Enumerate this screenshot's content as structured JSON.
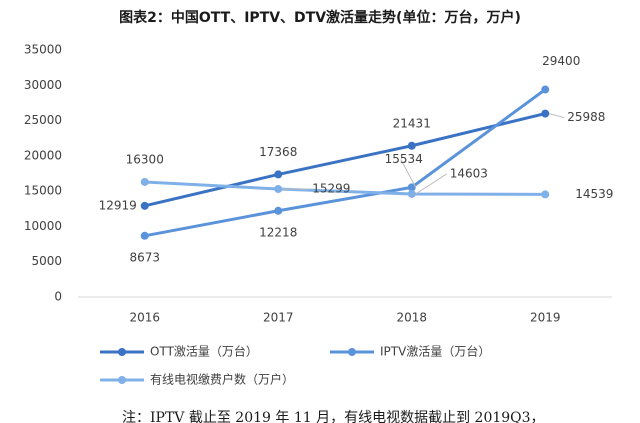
{
  "chart_data": {
    "type": "line",
    "title": "图表2：中国OTT、IPTV、DTV激活量走势(单位：万台，万户)",
    "categories": [
      "2016",
      "2017",
      "2018",
      "2019"
    ],
    "series": [
      {
        "name": "OTT激活量（万台）",
        "color": "#3a72c4",
        "values": [
          12919,
          17368,
          21431,
          25988
        ]
      },
      {
        "name": "IPTV激活量（万台）",
        "color": "#5b93da",
        "values": [
          8673,
          12218,
          15534,
          29400
        ]
      },
      {
        "name": "有线电视缴费户数（万户）",
        "color": "#7fb0e8",
        "values": [
          16300,
          15299,
          14603,
          14539
        ]
      }
    ],
    "ylim": [
      0,
      35000
    ],
    "yticks": [
      0,
      5000,
      10000,
      15000,
      20000,
      25000,
      30000,
      35000
    ],
    "grid": false,
    "legend": "bottom",
    "note": "注：IPTV 截止至 2019 年 11 月，有线电视数据截止到 2019Q3，"
  }
}
